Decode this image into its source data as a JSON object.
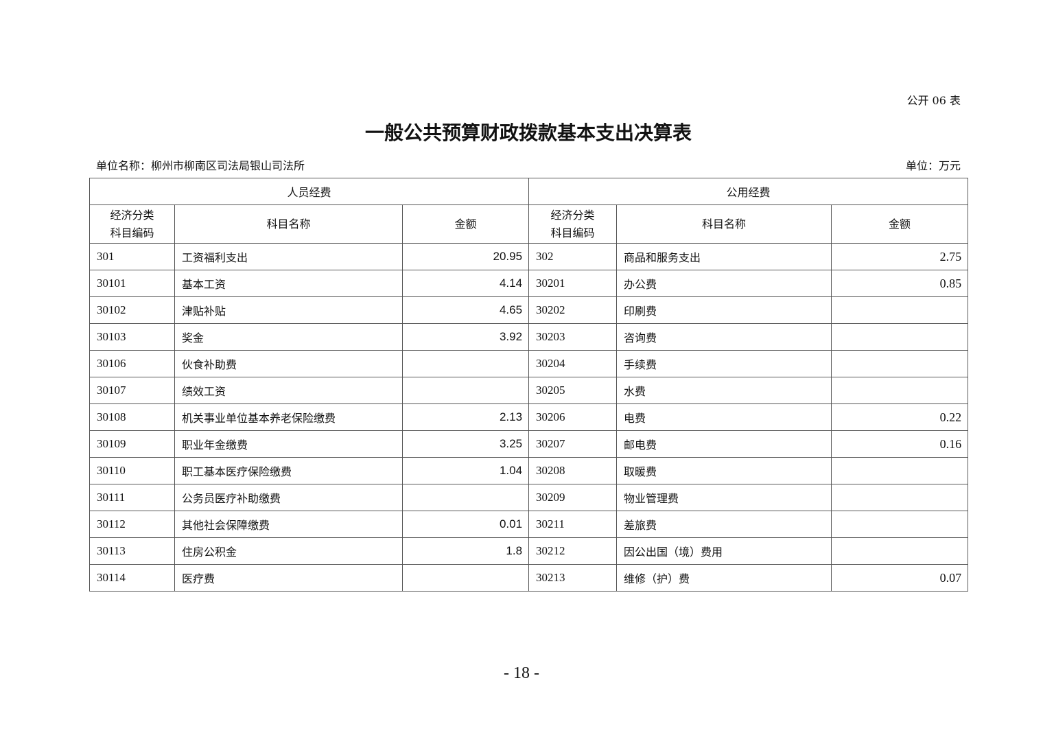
{
  "table_code": "公开 06 表",
  "title": "一般公共预算财政拨款基本支出决算表",
  "unit_name": "单位名称：柳州市柳南区司法局银山司法所",
  "unit": "单位：万元",
  "groups": {
    "personnel": "人员经费",
    "public": "公用经费"
  },
  "headers": {
    "code_line1": "经济分类",
    "code_line2": "科目编码",
    "name": "科目名称",
    "amount": "金额"
  },
  "rows": [
    {
      "lcode": "301",
      "lname": "工资福利支出",
      "lamt": "20.95",
      "rcode": "302",
      "rname": "商品和服务支出",
      "ramt": "2.75"
    },
    {
      "lcode": "30101",
      "lname": "基本工资",
      "lamt": "4.14",
      "rcode": "30201",
      "rname": "办公费",
      "ramt": "0.85"
    },
    {
      "lcode": "30102",
      "lname": "津贴补贴",
      "lamt": "4.65",
      "rcode": "30202",
      "rname": "印刷费",
      "ramt": ""
    },
    {
      "lcode": "30103",
      "lname": "奖金",
      "lamt": "3.92",
      "rcode": "30203",
      "rname": "咨询费",
      "ramt": ""
    },
    {
      "lcode": "30106",
      "lname": "伙食补助费",
      "lamt": "",
      "rcode": "30204",
      "rname": "手续费",
      "ramt": ""
    },
    {
      "lcode": "30107",
      "lname": "绩效工资",
      "lamt": "",
      "rcode": "30205",
      "rname": "水费",
      "ramt": ""
    },
    {
      "lcode": "30108",
      "lname": "机关事业单位基本养老保险缴费",
      "lamt": "2.13",
      "rcode": "30206",
      "rname": "电费",
      "ramt": "0.22"
    },
    {
      "lcode": "30109",
      "lname": "职业年金缴费",
      "lamt": "3.25",
      "rcode": "30207",
      "rname": "邮电费",
      "ramt": "0.16"
    },
    {
      "lcode": "30110",
      "lname": "职工基本医疗保险缴费",
      "lamt": "1.04",
      "rcode": "30208",
      "rname": "取暖费",
      "ramt": ""
    },
    {
      "lcode": "30111",
      "lname": "公务员医疗补助缴费",
      "lamt": "",
      "rcode": "30209",
      "rname": "物业管理费",
      "ramt": ""
    },
    {
      "lcode": "30112",
      "lname": "其他社会保障缴费",
      "lamt": "0.01",
      "rcode": "30211",
      "rname": "差旅费",
      "ramt": ""
    },
    {
      "lcode": "30113",
      "lname": "住房公积金",
      "lamt": "1.8",
      "rcode": "30212",
      "rname": "因公出国（境）费用",
      "ramt": ""
    },
    {
      "lcode": "30114",
      "lname": "医疗费",
      "lamt": "",
      "rcode": "30213",
      "rname": "维修（护）费",
      "ramt": "0.07"
    }
  ],
  "page_number": "- 18 -"
}
